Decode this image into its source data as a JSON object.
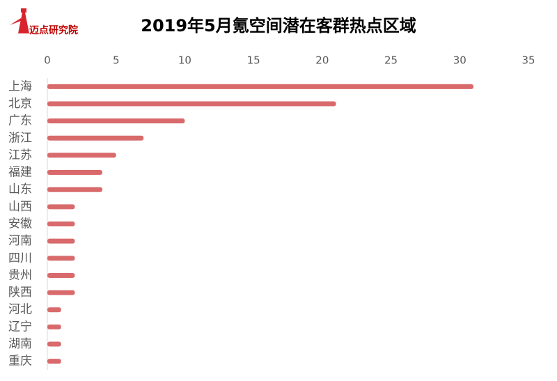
{
  "chart_data": {
    "type": "barh",
    "title": "2019年5月氪空间潜在客群热点区域",
    "logo": "迈点研究院",
    "categories": [
      "上海",
      "北京",
      "广东",
      "浙江",
      "江苏",
      "福建",
      "山东",
      "山西",
      "安徽",
      "河南",
      "四川",
      "贵州",
      "陕西",
      "河北",
      "辽宁",
      "湖南",
      "重庆"
    ],
    "values": [
      31,
      21,
      10,
      7,
      5,
      4,
      4,
      2,
      2,
      2,
      2,
      2,
      2,
      1,
      1,
      1,
      1
    ],
    "color": "#d96a6c",
    "xlim": [
      0,
      35
    ],
    "xticks": [
      0,
      5,
      10,
      15,
      20,
      25,
      30,
      35
    ],
    "grid": false,
    "x_axis_position": "top"
  }
}
